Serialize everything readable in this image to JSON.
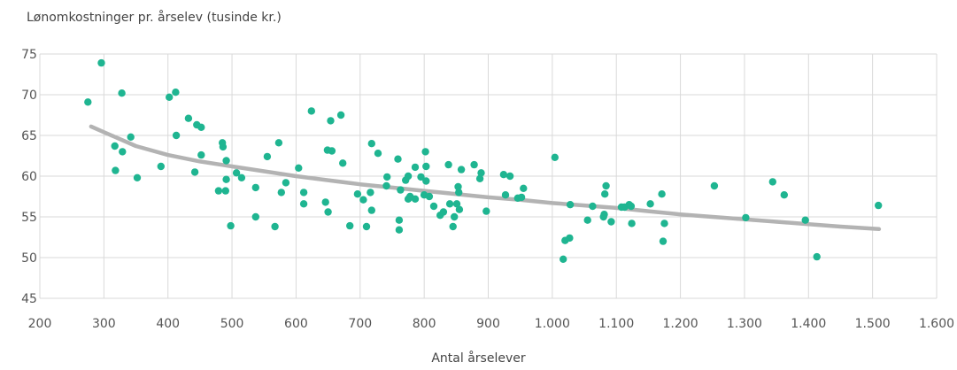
{
  "chart_data": {
    "type": "scatter",
    "title": "",
    "ylabel": "Lønomkostninger pr. årselev (tusinde kr.)",
    "xlabel": "Antal årselever",
    "xlim": [
      200,
      1600
    ],
    "ylim": [
      45,
      75
    ],
    "grid": true,
    "legend": "none",
    "x_ticks": [
      200,
      300,
      400,
      500,
      600,
      700,
      800,
      900,
      1000,
      1100,
      1200,
      1300,
      1400,
      1500,
      1600
    ],
    "x_tick_labels": [
      "200",
      "300",
      "400",
      "500",
      "600",
      "700",
      "800",
      "900",
      "1.000",
      "1.100",
      "1.200",
      "1.300",
      "1.400",
      "1.500",
      "1.600"
    ],
    "y_ticks": [
      45,
      50,
      55,
      60,
      65,
      70,
      75
    ],
    "y_tick_labels": [
      "45",
      "50",
      "55",
      "60",
      "65",
      "70",
      "75"
    ],
    "colors": {
      "points": "#1fb591",
      "trend": "#b3b3b3",
      "grid": "#d9d9d9"
    },
    "series": [
      {
        "type": "scatter",
        "points": [
          [
            275,
            69.1
          ],
          [
            296,
            73.9
          ],
          [
            317,
            63.7
          ],
          [
            318,
            60.7
          ],
          [
            328,
            70.2
          ],
          [
            329,
            63.0
          ],
          [
            342,
            64.8
          ],
          [
            352,
            59.8
          ],
          [
            389,
            61.2
          ],
          [
            402,
            69.7
          ],
          [
            412,
            70.3
          ],
          [
            413,
            65.0
          ],
          [
            432,
            67.1
          ],
          [
            442,
            60.5
          ],
          [
            445,
            66.3
          ],
          [
            452,
            66.0
          ],
          [
            452,
            62.6
          ],
          [
            479,
            58.2
          ],
          [
            485,
            64.1
          ],
          [
            486,
            63.6
          ],
          [
            490,
            58.2
          ],
          [
            491,
            61.9
          ],
          [
            491,
            59.6
          ],
          [
            498,
            53.9
          ],
          [
            507,
            60.4
          ],
          [
            515,
            59.8
          ],
          [
            555,
            62.4
          ],
          [
            537,
            58.6
          ],
          [
            537,
            55.0
          ],
          [
            567,
            53.8
          ],
          [
            573,
            64.1
          ],
          [
            577,
            58.0
          ],
          [
            584,
            59.2
          ],
          [
            604,
            61.0
          ],
          [
            612,
            56.6
          ],
          [
            612,
            58.0
          ],
          [
            624,
            68.0
          ],
          [
            646,
            56.8
          ],
          [
            649,
            63.2
          ],
          [
            650,
            55.6
          ],
          [
            654,
            66.8
          ],
          [
            656,
            63.1
          ],
          [
            670,
            67.5
          ],
          [
            673,
            61.6
          ],
          [
            684,
            53.9
          ],
          [
            696,
            57.8
          ],
          [
            705,
            57.1
          ],
          [
            710,
            53.8
          ],
          [
            716,
            58.0
          ],
          [
            718,
            55.8
          ],
          [
            718,
            64.0
          ],
          [
            728,
            62.8
          ],
          [
            741,
            58.8
          ],
          [
            742,
            59.9
          ],
          [
            759,
            62.1
          ],
          [
            761,
            54.6
          ],
          [
            761,
            53.4
          ],
          [
            763,
            58.3
          ],
          [
            771,
            59.5
          ],
          [
            775,
            60.0
          ],
          [
            775,
            57.2
          ],
          [
            778,
            57.5
          ],
          [
            786,
            61.1
          ],
          [
            786,
            57.2
          ],
          [
            795,
            59.9
          ],
          [
            800,
            57.7
          ],
          [
            802,
            63.0
          ],
          [
            803,
            61.2
          ],
          [
            803,
            59.4
          ],
          [
            808,
            57.5
          ],
          [
            815,
            56.3
          ],
          [
            825,
            55.2
          ],
          [
            830,
            55.6
          ],
          [
            838,
            61.4
          ],
          [
            840,
            56.6
          ],
          [
            845,
            53.8
          ],
          [
            847,
            55.0
          ],
          [
            851,
            56.6
          ],
          [
            853,
            58.7
          ],
          [
            855,
            55.9
          ],
          [
            854,
            58.0
          ],
          [
            858,
            60.8
          ],
          [
            878,
            61.4
          ],
          [
            887,
            59.7
          ],
          [
            889,
            60.4
          ],
          [
            897,
            55.7
          ],
          [
            924,
            60.2
          ],
          [
            927,
            57.7
          ],
          [
            934,
            60.0
          ],
          [
            946,
            57.3
          ],
          [
            952,
            57.4
          ],
          [
            955,
            58.5
          ],
          [
            1004,
            62.3
          ],
          [
            1017,
            49.8
          ],
          [
            1020,
            52.1
          ],
          [
            1027,
            52.4
          ],
          [
            1028,
            56.5
          ],
          [
            1055,
            54.6
          ],
          [
            1063,
            56.3
          ],
          [
            1080,
            55.0
          ],
          [
            1081,
            55.3
          ],
          [
            1082,
            57.8
          ],
          [
            1084,
            58.8
          ],
          [
            1092,
            54.4
          ],
          [
            1108,
            56.2
          ],
          [
            1113,
            56.2
          ],
          [
            1120,
            56.5
          ],
          [
            1123,
            56.3
          ],
          [
            1124,
            54.2
          ],
          [
            1153,
            56.6
          ],
          [
            1171,
            57.8
          ],
          [
            1173,
            52.0
          ],
          [
            1175,
            54.2
          ],
          [
            1253,
            58.8
          ],
          [
            1302,
            54.9
          ],
          [
            1344,
            59.3
          ],
          [
            1362,
            57.7
          ],
          [
            1395,
            54.6
          ],
          [
            1413,
            50.1
          ],
          [
            1509,
            56.4
          ]
        ]
      },
      {
        "type": "trendline",
        "points": [
          [
            280,
            66.1
          ],
          [
            300,
            65.4
          ],
          [
            350,
            63.7
          ],
          [
            400,
            62.6
          ],
          [
            450,
            61.8
          ],
          [
            500,
            61.2
          ],
          [
            550,
            60.6
          ],
          [
            600,
            60.0
          ],
          [
            650,
            59.5
          ],
          [
            700,
            59.0
          ],
          [
            750,
            58.6
          ],
          [
            800,
            58.2
          ],
          [
            850,
            57.8
          ],
          [
            900,
            57.4
          ],
          [
            950,
            57.1
          ],
          [
            1000,
            56.7
          ],
          [
            1050,
            56.4
          ],
          [
            1100,
            56.1
          ],
          [
            1150,
            55.7
          ],
          [
            1200,
            55.3
          ],
          [
            1250,
            55.0
          ],
          [
            1300,
            54.7
          ],
          [
            1350,
            54.4
          ],
          [
            1400,
            54.1
          ],
          [
            1450,
            53.8
          ],
          [
            1510,
            53.5
          ]
        ]
      }
    ]
  }
}
